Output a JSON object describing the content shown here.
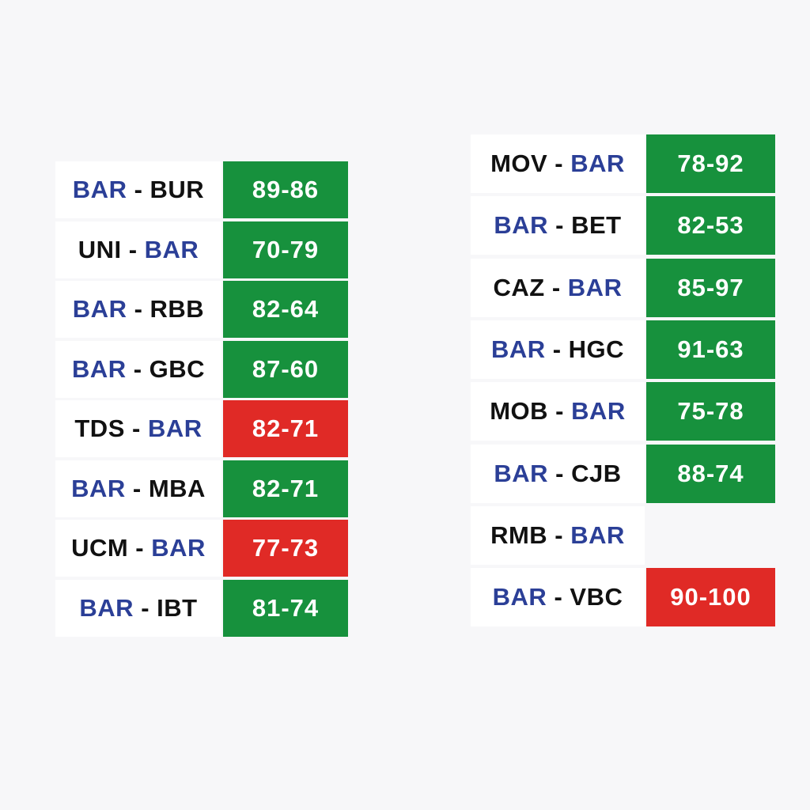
{
  "separator": " - ",
  "highlight_team": "BAR",
  "highlight_color": "#2b3f97",
  "lists": [
    {
      "rows": [
        {
          "home": "BAR",
          "away": "BUR",
          "score": "89-86",
          "color": "#17913d"
        },
        {
          "home": "UNI",
          "away": "BAR",
          "score": "70-79",
          "color": "#17913d"
        },
        {
          "home": "BAR",
          "away": "RBB",
          "score": "82-64",
          "color": "#17913d"
        },
        {
          "home": "BAR",
          "away": "GBC",
          "score": "87-60",
          "color": "#17913d"
        },
        {
          "home": "TDS",
          "away": "BAR",
          "score": "82-71",
          "color": "#e02a26"
        },
        {
          "home": "BAR",
          "away": "MBA",
          "score": "82-71",
          "color": "#17913d"
        },
        {
          "home": "UCM",
          "away": "BAR",
          "score": "77-73",
          "color": "#e02a26"
        },
        {
          "home": "BAR",
          "away": "IBT",
          "score": "81-74",
          "color": "#17913d"
        }
      ]
    },
    {
      "rows": [
        {
          "home": "MOV",
          "away": "BAR",
          "score": "78-92",
          "color": "#17913d"
        },
        {
          "home": "BAR",
          "away": "BET",
          "score": "82-53",
          "color": "#17913d"
        },
        {
          "home": "CAZ",
          "away": "BAR",
          "score": "85-97",
          "color": "#17913d"
        },
        {
          "home": "BAR",
          "away": "HGC",
          "score": "91-63",
          "color": "#17913d"
        },
        {
          "home": "MOB",
          "away": "BAR",
          "score": "75-78",
          "color": "#17913d"
        },
        {
          "home": "BAR",
          "away": "CJB",
          "score": "88-74",
          "color": "#17913d"
        },
        {
          "home": "RMB",
          "away": "BAR",
          "score": null,
          "color": null
        },
        {
          "home": "BAR",
          "away": "VBC",
          "score": "90-100",
          "color": "#e02a26"
        }
      ]
    }
  ]
}
